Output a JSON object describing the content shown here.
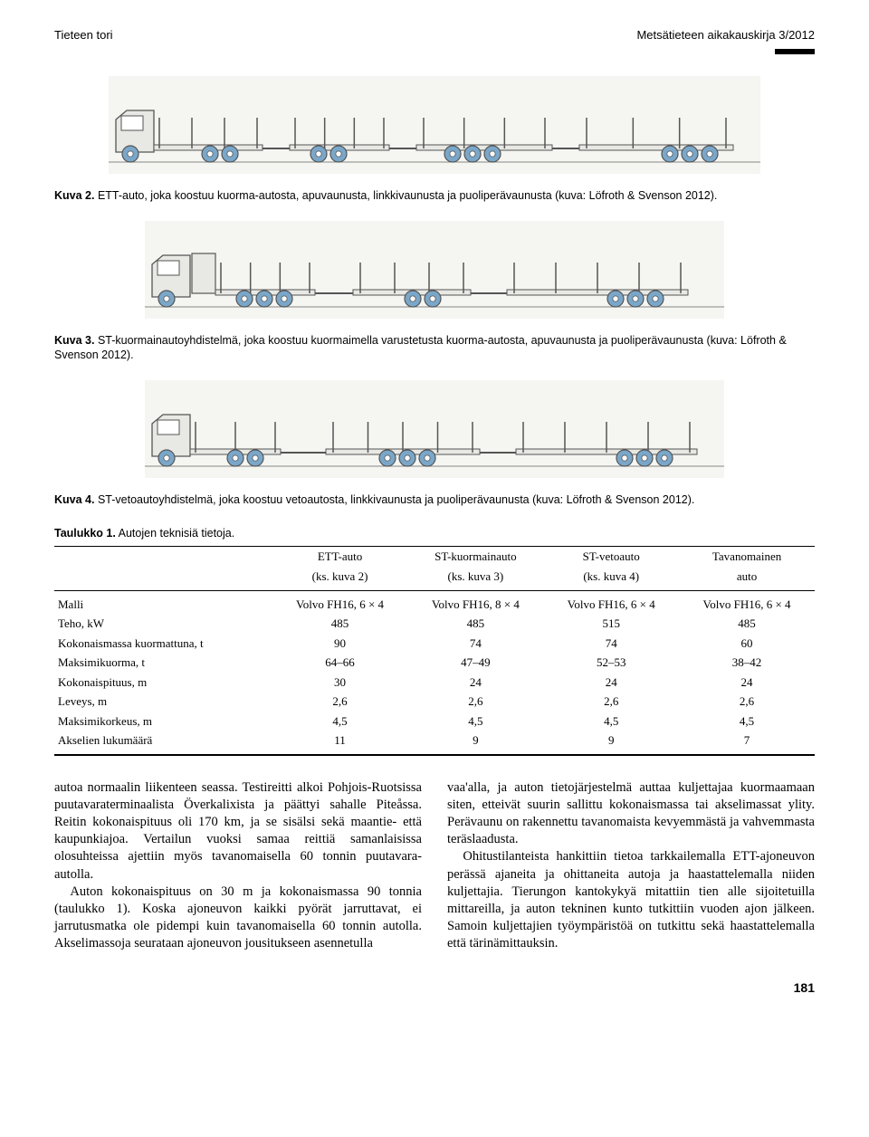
{
  "header": {
    "left": "Tieteen tori",
    "right": "Metsätieteen aikakauskirja 3/2012"
  },
  "figures": {
    "kuva2": {
      "label": "Kuva 2.",
      "text": "ETT-auto, joka koostuu kuorma-autosta, apuvaunusta, linkkivaunusta ja puoliperävaunusta (kuva: Löfroth & Svenson 2012).",
      "bg": "#f5f5f2",
      "stroke": "#555555",
      "wheel_fill": "#7aa7c9",
      "cab_fill": "#e8e8e4"
    },
    "kuva3": {
      "label": "Kuva 3.",
      "text": "ST-kuormainautoyhdistelmä, joka koostuu kuormaimella varustetusta kuorma-autosta, apuvaunusta ja puoliperävaunusta (kuva: Löfroth & Svenson 2012).",
      "bg": "#f5f5f2",
      "stroke": "#555555",
      "wheel_fill": "#7aa7c9",
      "cab_fill": "#e8e8e4"
    },
    "kuva4": {
      "label": "Kuva 4.",
      "text": "ST-vetoautoyhdistelmä, joka koostuu vetoautosta, linkkivaunusta ja puoliperävaunusta (kuva: Löfroth & Svenson 2012).",
      "bg": "#f5f5f2",
      "stroke": "#555555",
      "wheel_fill": "#7aa7c9",
      "cab_fill": "#e8e8e4"
    }
  },
  "table": {
    "title_label": "Taulukko 1.",
    "title_text": "Autojen teknisiä tietoja.",
    "columns": [
      {
        "name": "ETT-auto",
        "sub": "(ks. kuva 2)"
      },
      {
        "name": "ST-kuormainauto",
        "sub": "(ks. kuva 3)"
      },
      {
        "name": "ST-vetoauto",
        "sub": "(ks. kuva 4)"
      },
      {
        "name": "Tavanomainen",
        "sub": "auto"
      }
    ],
    "rows": [
      {
        "label": "Malli",
        "values": [
          "Volvo FH16, 6 × 4",
          "Volvo FH16, 8 × 4",
          "Volvo FH16, 6 × 4",
          "Volvo FH16, 6 × 4"
        ]
      },
      {
        "label": "Teho, kW",
        "values": [
          "485",
          "485",
          "515",
          "485"
        ]
      },
      {
        "label": "Kokonaismassa kuormattuna, t",
        "values": [
          "90",
          "74",
          "74",
          "60"
        ]
      },
      {
        "label": "Maksimikuorma, t",
        "values": [
          "64–66",
          "47–49",
          "52–53",
          "38–42"
        ]
      },
      {
        "label": "Kokonaispituus, m",
        "values": [
          "30",
          "24",
          "24",
          "24"
        ]
      },
      {
        "label": "Leveys, m",
        "values": [
          "2,6",
          "2,6",
          "2,6",
          "2,6"
        ]
      },
      {
        "label": "Maksimikorkeus, m",
        "values": [
          "4,5",
          "4,5",
          "4,5",
          "4,5"
        ]
      },
      {
        "label": "Akselien lukumäärä",
        "values": [
          "11",
          "9",
          "9",
          "7"
        ]
      }
    ]
  },
  "body": {
    "left": {
      "p1": "autoa normaalin liikenteen seassa. Testireitti alkoi Pohjois-Ruotsissa puutavaraterminaalista Överkalixista ja päättyi sahalle Piteåssa. Reitin kokonaispituus oli 170 km, ja se sisälsi sekä maantie- että kaupunkiajoa. Vertailun vuoksi samaa reittiä samanlaisissa olosuhteissa ajettiin myös tavanomaisella 60 tonnin puutavara-autolla.",
      "p2": "Auton kokonaispituus on 30 m ja kokonaismassa 90 tonnia (taulukko 1). Koska ajoneuvon kaikki pyörät jarruttavat, ei jarrutusmatka ole pidempi kuin tavanomaisella 60 tonnin autolla. Akselimassoja seurataan ajoneuvon jousitukseen asennetulla"
    },
    "right": {
      "p1": "vaa'alla, ja auton tietojärjestelmä auttaa kuljettajaa kuormaamaan siten, etteivät suurin sallittu kokonaismassa tai akselimassat ylity. Perävaunu on rakennettu tavanomaista kevyemmästä ja vahvemmasta teräslaadusta.",
      "p2": "Ohitustilanteista hankittiin tietoa tarkkailemalla ETT-ajoneuvon perässä ajaneita ja ohittaneita autoja ja haastattelemalla niiden kuljettajia. Tierungon kantokykyä mitattiin tien alle sijoitetuilla mittareilla, ja auton tekninen kunto tutkittiin vuoden ajon jälkeen. Samoin kuljettajien työympäristöä on tutkittu sekä haastattelemalla että tärinämittauksin."
    }
  },
  "page_number": "181"
}
